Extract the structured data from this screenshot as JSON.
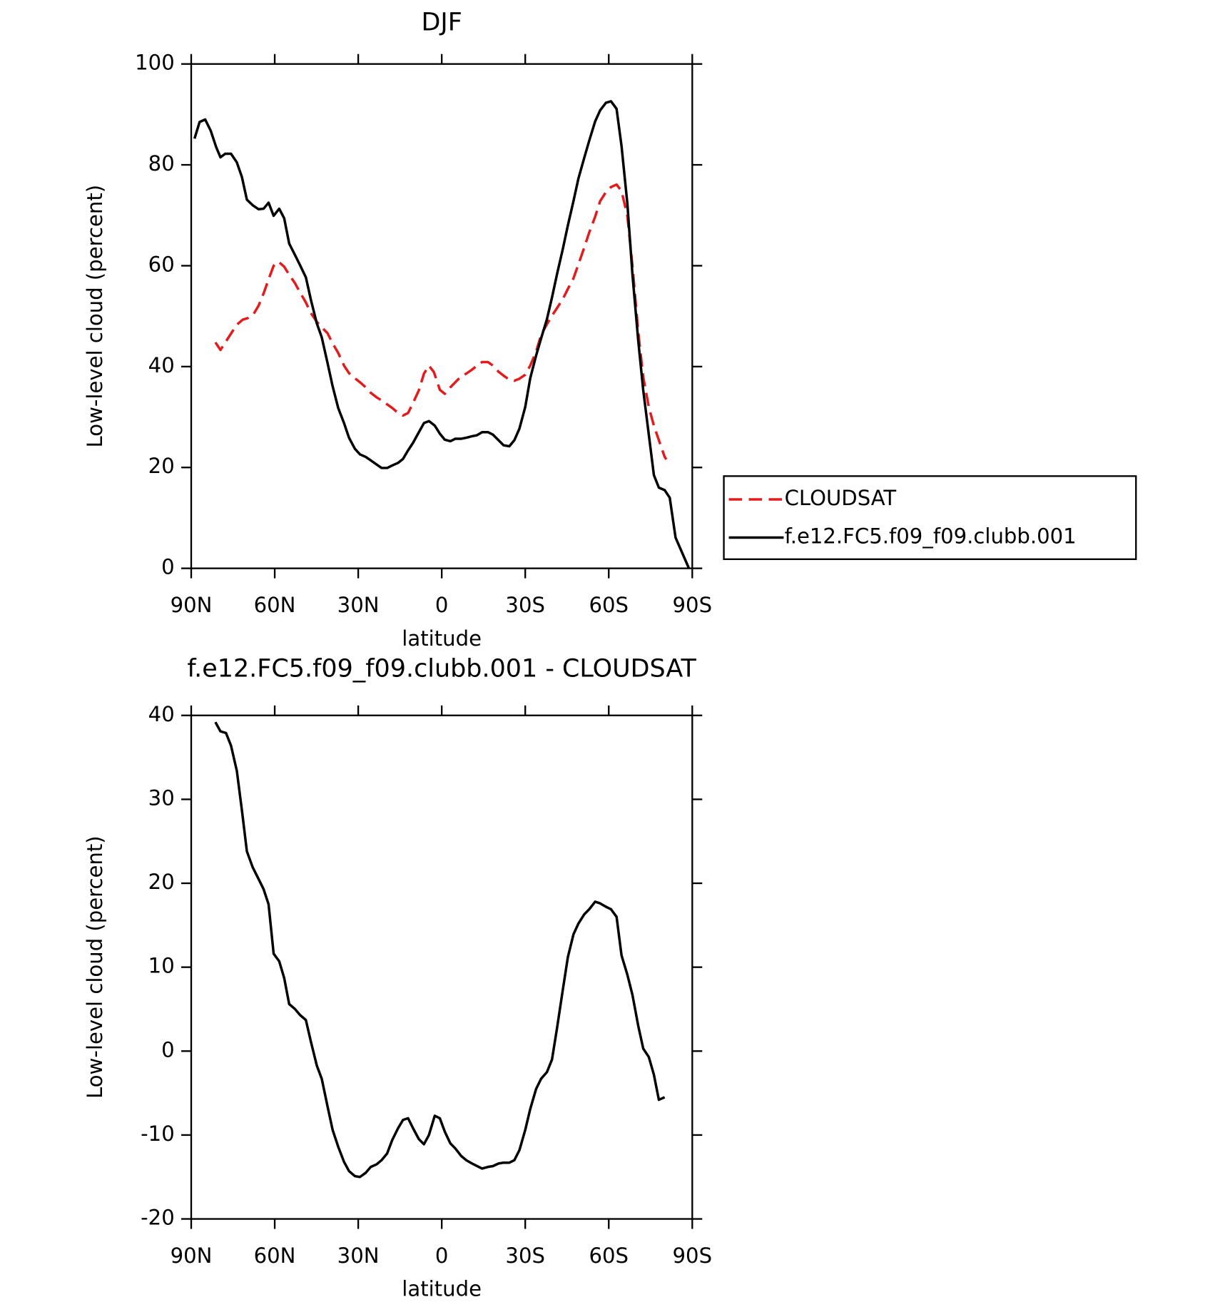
{
  "chart_data": [
    {
      "type": "line",
      "title": "DJF",
      "xlabel": "latitude",
      "ylabel": "Low-level cloud (percent)",
      "xlim": [
        90,
        -90
      ],
      "xticks": [
        {
          "value": 90,
          "label": "90N"
        },
        {
          "value": 60,
          "label": "60N"
        },
        {
          "value": 30,
          "label": "30N"
        },
        0,
        {
          "value": -30,
          "label": "30S"
        },
        {
          "value": -60,
          "label": "60S"
        },
        {
          "value": -90,
          "label": "90S"
        }
      ],
      "ylim": [
        0,
        100
      ],
      "yticks": [
        0,
        20,
        40,
        60,
        80,
        100
      ],
      "legend": "outside-right",
      "series": [
        {
          "name": "CLOUDSAT",
          "color": "#e41a1c",
          "dash": true,
          "x": [
            81.3,
            79.5,
            77.5,
            75.4,
            73.6,
            71.5,
            69.7,
            67.6,
            65.8,
            64,
            62.2,
            60.4,
            58.7,
            56.6,
            54.8,
            52.7,
            50.9,
            48.8,
            47,
            44.9,
            43.1,
            41,
            39.2,
            37.2,
            35.1,
            33.3,
            31.2,
            29.4,
            27.3,
            25.5,
            23.4,
            21.6,
            19.6,
            17.8,
            15.7,
            13.9,
            12.1,
            10.3,
            8.2,
            6.4,
            4.6,
            2.8,
            0.7,
            -1.1,
            -3.1,
            -4.9,
            -7,
            -8.8,
            -10.9,
            -12.7,
            -14.5,
            -16.6,
            -18.4,
            -20.4,
            -22.2,
            -24.3,
            -26.1,
            -27.9,
            -30,
            -31.8,
            -33.9,
            -35.7,
            -37.8,
            -39.6,
            -41.4,
            -43.5,
            -45.3,
            -47.3,
            -49.1,
            -51.2,
            -53,
            -55.1,
            -56.9,
            -59,
            -60.8,
            -62.8,
            -64.6,
            -66.7,
            -68.5,
            -70.6,
            -72.4,
            -74.4,
            -76.2,
            -78,
            -80.1,
            -80.7
          ],
          "values": [
            44.8,
            43.3,
            45,
            46.8,
            48.3,
            49.3,
            49.6,
            50.4,
            52.1,
            54.5,
            57.3,
            60,
            60.8,
            59.8,
            58.2,
            56.5,
            54.7,
            52.7,
            50.6,
            48.9,
            47.8,
            46.6,
            44.6,
            42.7,
            40.2,
            38.7,
            37.7,
            36.9,
            35.9,
            34.8,
            33.9,
            33.3,
            32.5,
            31.8,
            30.8,
            30.3,
            30.8,
            32.8,
            35.3,
            38.6,
            40.2,
            38.9,
            35.4,
            34.6,
            35.9,
            36.9,
            38.1,
            38.6,
            39.4,
            40.2,
            40.9,
            40.9,
            40.2,
            39,
            38.2,
            37.4,
            37.2,
            37.6,
            38.4,
            40.2,
            43,
            46.3,
            48.4,
            50.1,
            51.6,
            53.4,
            55.4,
            57.5,
            60.3,
            63.6,
            66.6,
            69.7,
            72.8,
            74.6,
            75.6,
            76.1,
            74.8,
            69.9,
            60,
            46.8,
            37.9,
            32,
            28.3,
            25.4,
            22.1,
            21.6
          ]
        },
        {
          "name": "f.e12.FC5.f09_f09.clubb.001",
          "color": "#000000",
          "dash": false,
          "x": [
            88.8,
            87,
            85,
            83,
            81,
            79.5,
            77.8,
            75.7,
            73.6,
            71.8,
            70,
            67.9,
            65.8,
            64,
            62.2,
            60.4,
            58.4,
            56.6,
            54.8,
            52.7,
            50.9,
            48.8,
            47,
            44.9,
            43.1,
            41,
            39.2,
            37.2,
            35.1,
            33.3,
            31.2,
            29.4,
            27.3,
            25.5,
            23.4,
            21.6,
            19.6,
            17.8,
            15.7,
            13.9,
            12.1,
            10.3,
            8.2,
            6.4,
            4.6,
            2.5,
            0.7,
            -1.1,
            -3.1,
            -4.9,
            -7,
            -8.8,
            -10.9,
            -12.7,
            -14.5,
            -16.6,
            -18.4,
            -20.4,
            -22.2,
            -24.3,
            -26.1,
            -27.9,
            -30,
            -31.8,
            -33.9,
            -35.7,
            -37.8,
            -39.6,
            -41.4,
            -43.5,
            -45.3,
            -47.3,
            -49.1,
            -51.2,
            -53,
            -55.1,
            -56.9,
            -59,
            -60.8,
            -62.8,
            -64.6,
            -66.7,
            -68.5,
            -70.6,
            -72.4,
            -74.4,
            -76.2,
            -78,
            -80.1,
            -81.9,
            -84,
            -88.8
          ],
          "values": [
            85.2,
            88.5,
            89,
            86.8,
            83.5,
            81.5,
            82.2,
            82.2,
            80.5,
            77.6,
            73.1,
            72,
            71.2,
            71.3,
            72.5,
            69.9,
            71.3,
            69.4,
            64.4,
            62.1,
            60.1,
            57.7,
            53.2,
            48.6,
            45.8,
            40.7,
            36.1,
            31.8,
            28.8,
            25.9,
            23.7,
            22.6,
            22.1,
            21.4,
            20.6,
            19.9,
            19.9,
            20.4,
            20.9,
            21.7,
            23.4,
            24.9,
            27,
            28.8,
            29.2,
            28.3,
            26.7,
            25.5,
            25.2,
            25.7,
            25.7,
            25.9,
            26.2,
            26.4,
            27,
            27,
            26.5,
            25.4,
            24.4,
            24.2,
            25.4,
            27.7,
            32,
            37.7,
            42.2,
            45.6,
            49.4,
            53.7,
            58.3,
            63.3,
            68,
            72.8,
            77.3,
            81.4,
            84.8,
            88.6,
            90.8,
            92.3,
            92.6,
            91.1,
            83.7,
            72.3,
            58.3,
            45.1,
            35.3,
            26.5,
            18.5,
            16,
            15.5,
            14,
            6.1,
            0
          ]
        }
      ]
    },
    {
      "type": "line",
      "title": "f.e12.FC5.f09_f09.clubb.001 - CLOUDSAT",
      "xlabel": "latitude",
      "ylabel": "Low-level cloud (percent)",
      "xlim": [
        90,
        -90
      ],
      "xticks": [
        {
          "value": 90,
          "label": "90N"
        },
        {
          "value": 60,
          "label": "60N"
        },
        {
          "value": 30,
          "label": "30N"
        },
        0,
        {
          "value": -30,
          "label": "30S"
        },
        {
          "value": -60,
          "label": "60S"
        },
        {
          "value": -90,
          "label": "90S"
        }
      ],
      "ylim": [
        -20,
        40
      ],
      "yticks": [
        -20,
        -10,
        0,
        10,
        20,
        30,
        40
      ],
      "series": [
        {
          "color": "#000000",
          "dash": false,
          "x": [
            81.3,
            79.5,
            77.5,
            75.7,
            73.6,
            71.8,
            70,
            67.9,
            65.8,
            64,
            62.2,
            60.4,
            58.4,
            56.6,
            54.8,
            52.7,
            50.9,
            48.8,
            47,
            44.9,
            43.1,
            41,
            39.2,
            37.2,
            35.1,
            33.3,
            31.2,
            29.4,
            27.3,
            25.5,
            23.4,
            21.6,
            19.6,
            17.8,
            15.7,
            13.9,
            12.1,
            10.3,
            8.2,
            6.4,
            4.6,
            2.5,
            0.7,
            -1.1,
            -3.1,
            -4.9,
            -7,
            -8.8,
            -10.9,
            -12.7,
            -14.5,
            -16.6,
            -18.4,
            -20.4,
            -22.2,
            -24.3,
            -26.1,
            -27.9,
            -30,
            -31.8,
            -33.9,
            -35.7,
            -37.8,
            -39.6,
            -41.4,
            -43.5,
            -45.3,
            -47.3,
            -49.1,
            -51.2,
            -53,
            -55.1,
            -56.9,
            -59,
            -60.8,
            -62.8,
            -64.6,
            -66.7,
            -68.5,
            -70.6,
            -72.4,
            -74.4,
            -76.2,
            -78,
            -80.1
          ],
          "values": [
            39.2,
            38.1,
            37.9,
            36.4,
            33.4,
            28.7,
            23.8,
            21.9,
            20.5,
            19.3,
            17.5,
            11.6,
            10.7,
            8.7,
            5.6,
            5,
            4.3,
            3.7,
            1.1,
            -1.7,
            -3.3,
            -6.6,
            -9.4,
            -11.4,
            -13.2,
            -14.3,
            -14.9,
            -15,
            -14.5,
            -13.8,
            -13.5,
            -13,
            -12.2,
            -10.6,
            -9.2,
            -8.2,
            -8,
            -9.2,
            -10.5,
            -11.1,
            -10,
            -7.7,
            -8,
            -9.6,
            -11,
            -11.6,
            -12.5,
            -13,
            -13.4,
            -13.7,
            -14,
            -13.8,
            -13.7,
            -13.4,
            -13.3,
            -13.3,
            -13,
            -11.8,
            -9.4,
            -6.9,
            -4.5,
            -3.3,
            -2.5,
            -1,
            2.7,
            7.3,
            11.2,
            13.9,
            15.2,
            16.3,
            16.9,
            17.8,
            17.6,
            17.2,
            16.9,
            16,
            11.4,
            9.1,
            6.7,
            3,
            0.3,
            -0.7,
            -2.8,
            -5.8,
            -5.5
          ]
        }
      ]
    }
  ]
}
